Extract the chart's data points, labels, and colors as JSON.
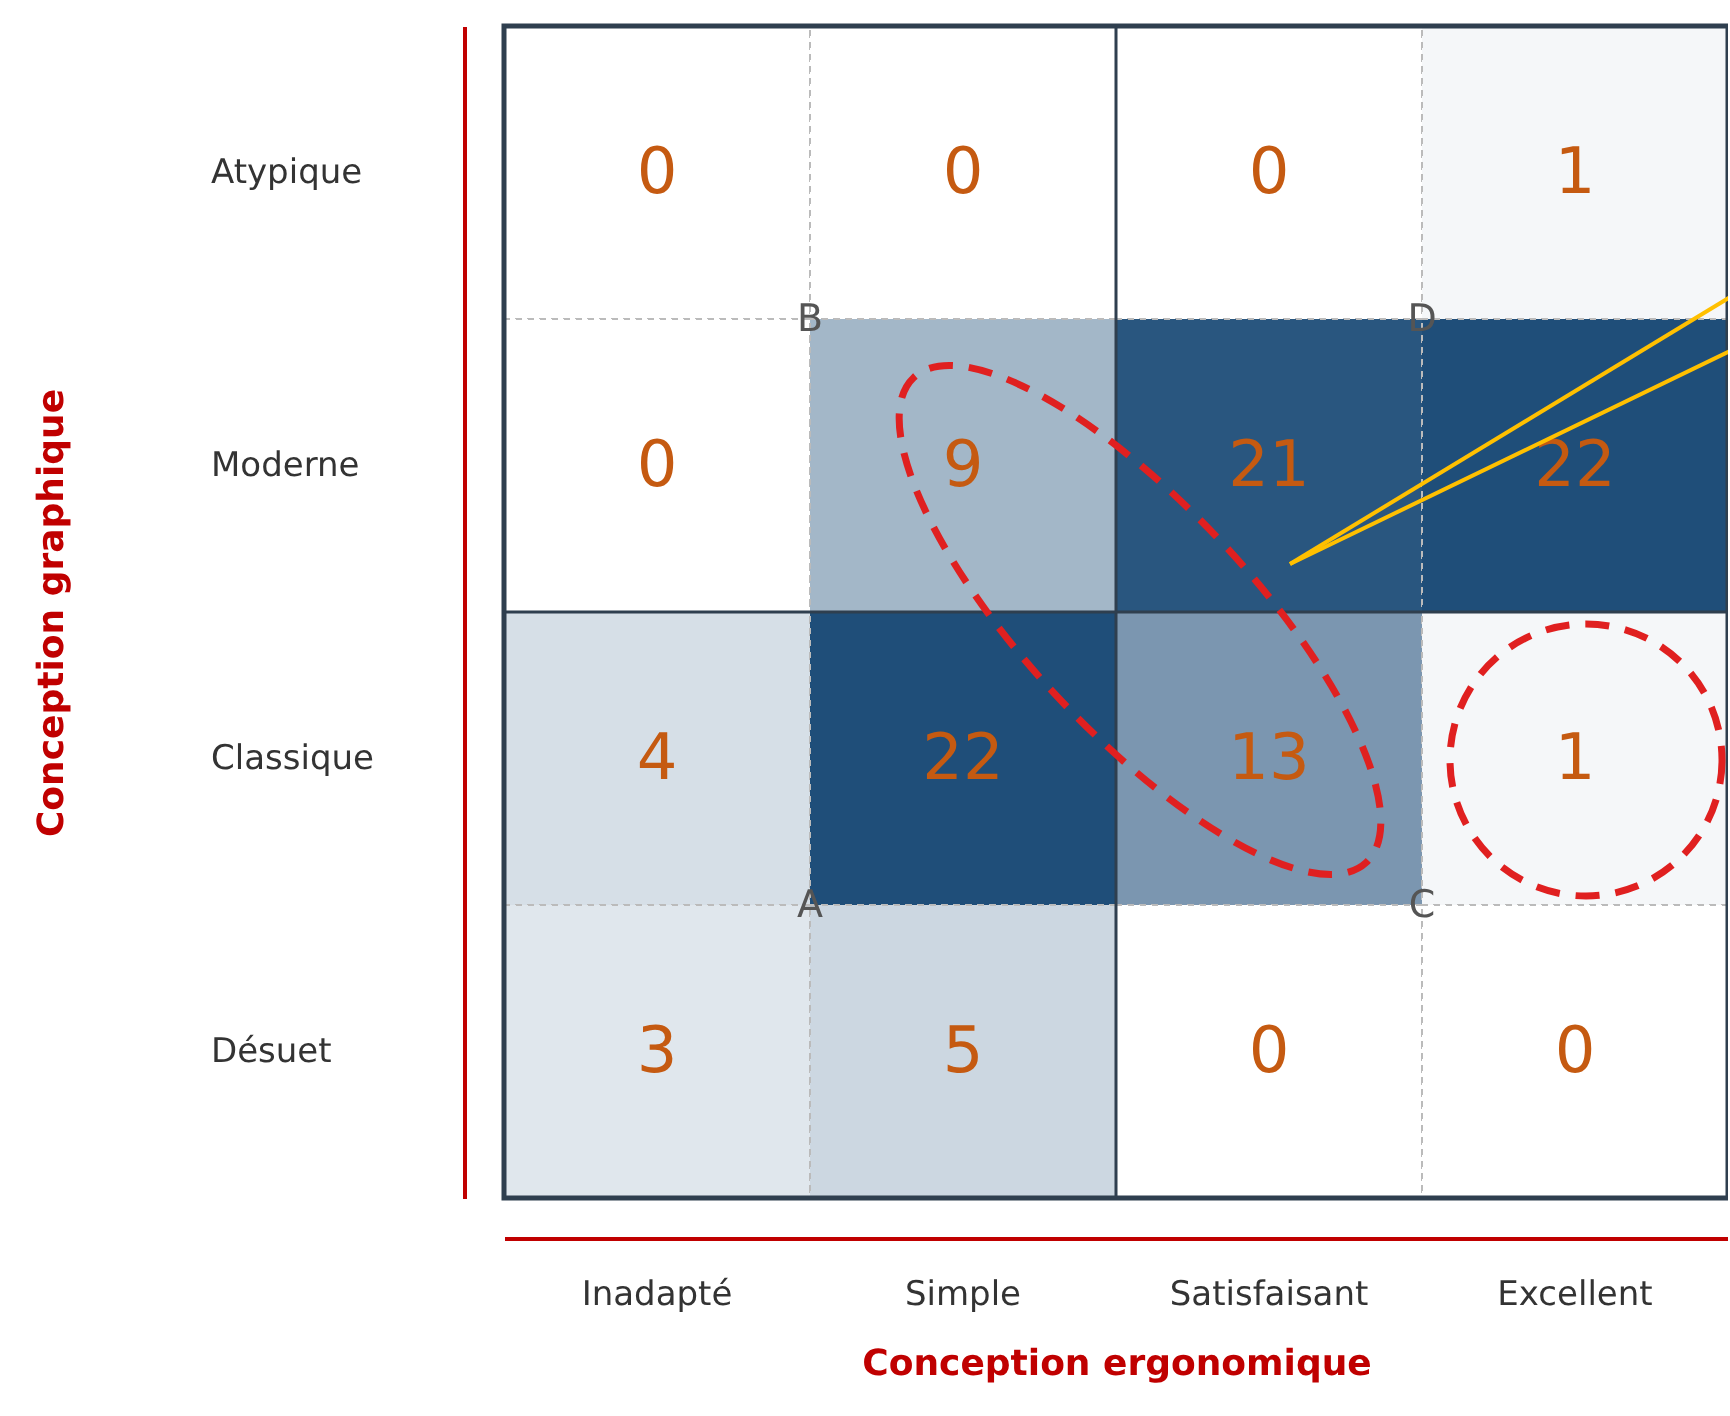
{
  "chart_data": {
    "type": "heatmap",
    "xlabel": "Conception ergonomique",
    "ylabel": "Conception graphique",
    "categories": [
      "Inadapté",
      "Simple",
      "Satisfaisant",
      "Excellent"
    ],
    "y_categories": [
      "Atypique",
      "Moderne",
      "Classique",
      "Désuet"
    ],
    "cells": [
      [
        0,
        0,
        0,
        1
      ],
      [
        0,
        9,
        21,
        22
      ],
      [
        4,
        22,
        13,
        1
      ],
      [
        3,
        5,
        0,
        0
      ]
    ],
    "data_labels": true,
    "color": "#1f4e79",
    "annotations": [
      "A",
      "B",
      "C",
      "D"
    ]
  }
}
